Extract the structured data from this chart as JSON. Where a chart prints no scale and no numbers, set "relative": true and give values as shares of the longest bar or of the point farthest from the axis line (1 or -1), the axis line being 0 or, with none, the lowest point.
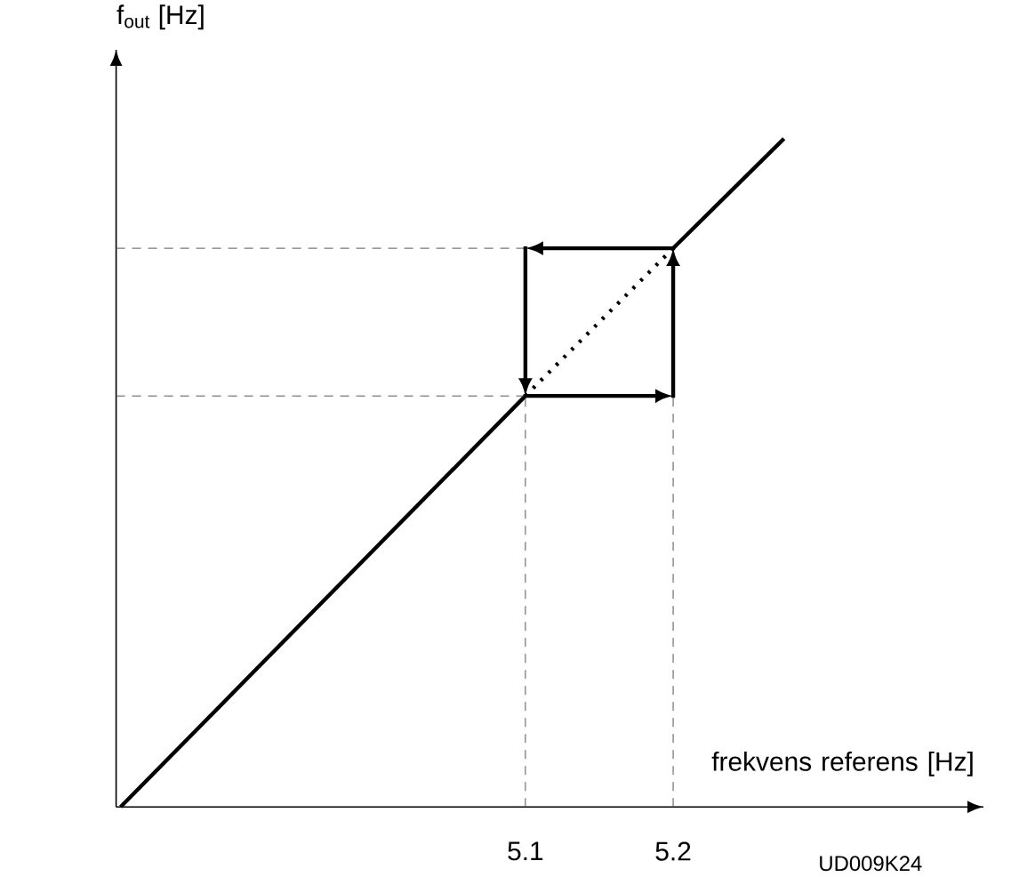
{
  "chart_data": {
    "type": "line",
    "relative": true,
    "xlabel": "frekvens referens [Hz]",
    "ylabel": "f$_{out}$ [Hz]",
    "annotations": [
      "UD009K24"
    ],
    "xlim": [
      4.823,
      5.41
    ],
    "xticks": [
      5.1,
      5.2
    ],
    "tick_labels": "x",
    "grid": false,
    "marker": "none",
    "series": [
      {
        "color": "#000000",
        "x": [
          4.826,
          5.1
        ],
        "values": [
          0,
          0.615
        ],
        "line_style": "solid"
      },
      {
        "color": "#000000",
        "x": [
          5.1,
          5.2
        ],
        "values": [
          0.615,
          0.836
        ],
        "line_style": "dotted"
      },
      {
        "color": "#000000",
        "x": [
          5.2,
          5.275
        ],
        "values": [
          0.836,
          1
        ],
        "line_style": "solid"
      }
    ],
    "ref_lines": [
      {
        "axis": "y",
        "value": 0.615,
        "line_style": "dashed",
        "color": "#555555"
      },
      {
        "axis": "y",
        "value": 0.836,
        "line_style": "dashed",
        "color": "#555555"
      },
      {
        "axis": "x",
        "value": 5.1,
        "line_style": "dashed",
        "color": "#555555"
      },
      {
        "axis": "x",
        "value": 5.2,
        "line_style": "dashed",
        "color": "#555555"
      }
    ]
  }
}
